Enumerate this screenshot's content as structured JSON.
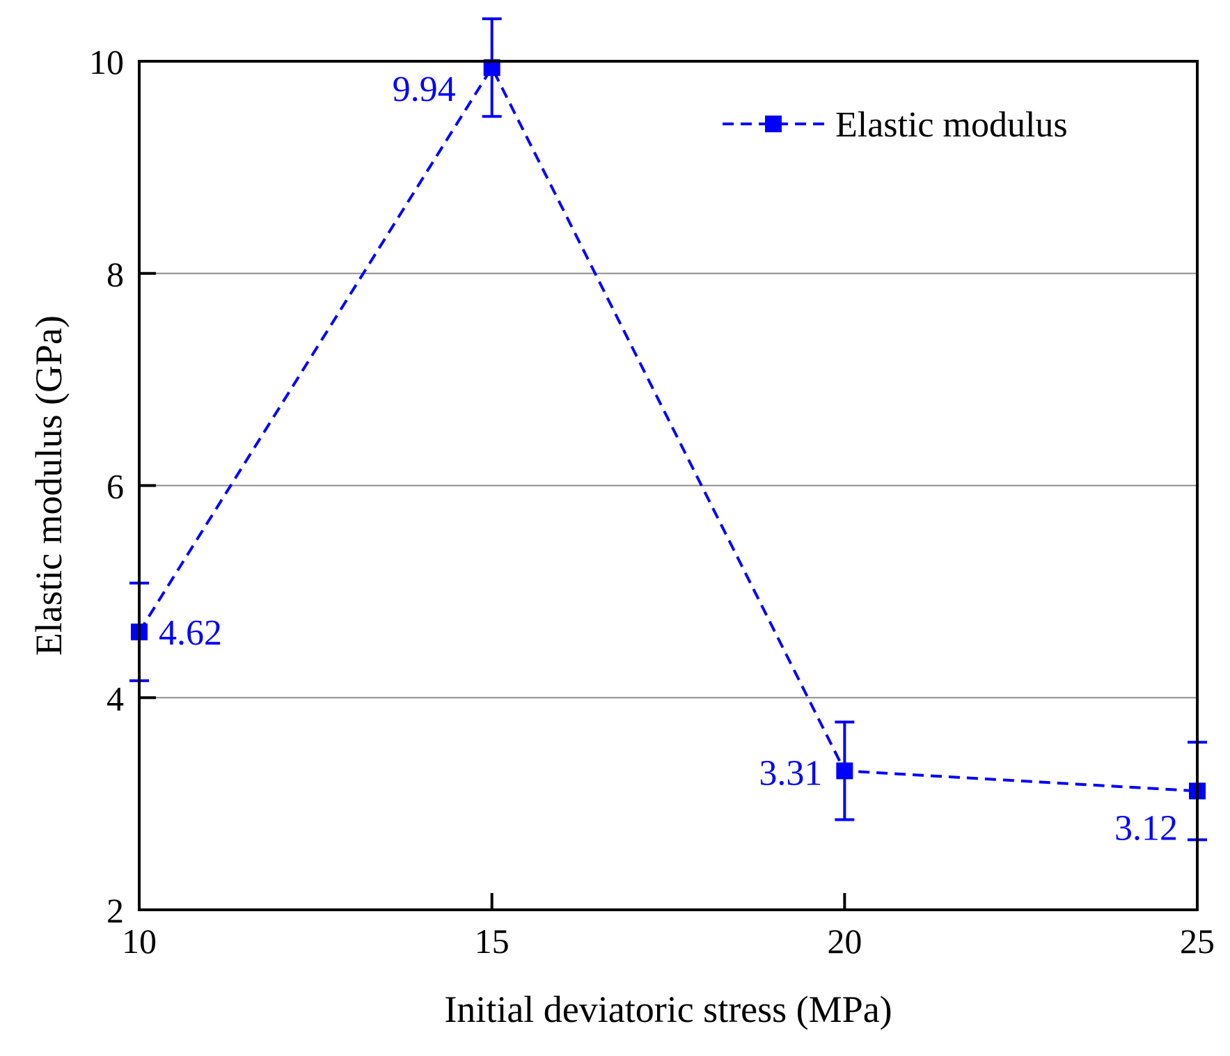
{
  "chart_data": {
    "type": "line",
    "title": "",
    "xlabel": "Initial deviatoric stress (MPa)",
    "ylabel": "Elastic modulus (GPa)",
    "xlim": [
      10,
      25
    ],
    "ylim": [
      2,
      10
    ],
    "x_ticks": [
      10,
      15,
      20,
      25
    ],
    "y_ticks": [
      2,
      4,
      6,
      8,
      10
    ],
    "grid": "horizontal",
    "legend_position": "top-right",
    "series": [
      {
        "name": "Elastic modulus",
        "color": "#0000ff",
        "line_style": "dashed",
        "marker": "square",
        "x": [
          10,
          15,
          20,
          25
        ],
        "y": [
          4.62,
          9.94,
          3.31,
          3.12
        ],
        "error": [
          0.46,
          0.46,
          0.46,
          0.46
        ],
        "data_labels": [
          "4.62",
          "9.94",
          "3.31",
          "3.12"
        ]
      }
    ]
  }
}
